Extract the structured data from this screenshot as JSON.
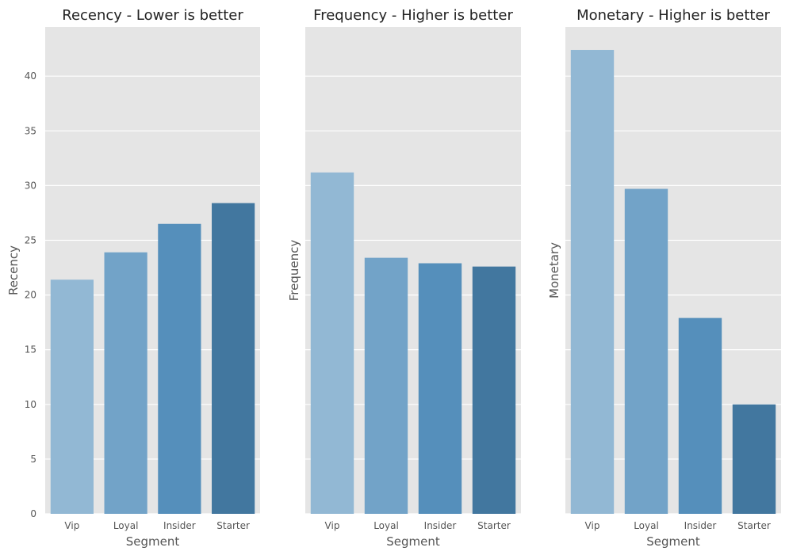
{
  "figure": {
    "colors": {
      "background": "#ffffff",
      "panel_background": "#e5e5e5",
      "grid": "#ffffff",
      "bars": [
        "#92b8d4",
        "#72a3c8",
        "#558fbb",
        "#42779f"
      ]
    }
  },
  "chart_data": [
    {
      "type": "bar",
      "title": "Recency - Lower is better",
      "xlabel": "Segment",
      "ylabel": "Recency",
      "categories": [
        "Vip",
        "Loyal",
        "Insider",
        "Starter"
      ],
      "values": [
        21.4,
        23.9,
        26.5,
        28.4
      ],
      "ylim": [
        0,
        44.5
      ],
      "yticks": [
        "0",
        "5",
        "10",
        "15",
        "20",
        "25",
        "30",
        "35",
        "40"
      ],
      "grid": true
    },
    {
      "type": "bar",
      "title": "Frequency - Higher is better",
      "xlabel": "Segment",
      "ylabel": "Frequency",
      "categories": [
        "Vip",
        "Loyal",
        "Insider",
        "Starter"
      ],
      "values": [
        31.2,
        23.4,
        22.9,
        22.6
      ],
      "ylim": [
        0,
        44.5
      ],
      "yticks": [],
      "grid": true
    },
    {
      "type": "bar",
      "title": "Monetary - Higher is better",
      "xlabel": "Segment",
      "ylabel": "Monetary",
      "categories": [
        "Vip",
        "Loyal",
        "Insider",
        "Starter"
      ],
      "values": [
        42.4,
        29.7,
        17.9,
        10.0
      ],
      "ylim": [
        0,
        44.5
      ],
      "yticks": [],
      "grid": true
    }
  ]
}
